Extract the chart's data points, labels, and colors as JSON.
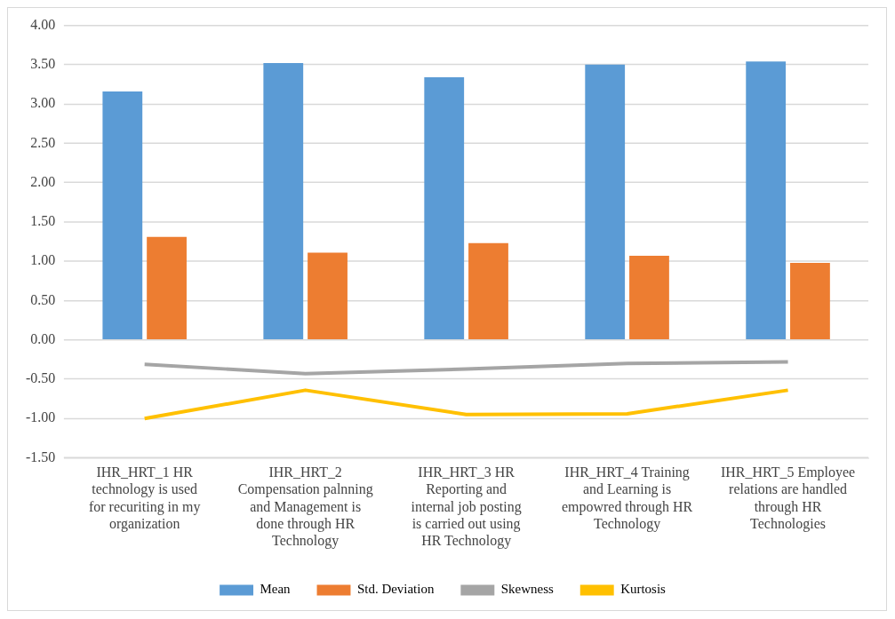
{
  "chart_data": {
    "type": "bar",
    "categories": [
      "IHR_HRT_1 HR technology is used for recuriting in my organization",
      "IHR_HRT_2 Compensation palnning and Management is done through HR Technology",
      "IHR_HRT_3 HR Reporting and internal job posting is carried out using HR Technology",
      "IHR_HRT_4 Training and Learning is empowred through HR Technology",
      "IHR_HRT_5 Employee relations are handled through HR Technologies"
    ],
    "series": [
      {
        "name": "Mean",
        "color": "#5b9bd5",
        "values": [
          3.16,
          3.52,
          3.34,
          3.5,
          3.54
        ]
      },
      {
        "name": "Std. Deviation",
        "color": "#ed7d31",
        "values": [
          1.31,
          1.11,
          1.23,
          1.07,
          0.98
        ]
      },
      {
        "name": "Skewness",
        "type": "line",
        "color": "#a5a5a5",
        "values": [
          -0.31,
          -0.43,
          -0.37,
          -0.3,
          -0.28
        ]
      },
      {
        "name": "Kurtosis",
        "type": "line",
        "color": "#ffc000",
        "values": [
          -1.0,
          -0.64,
          -0.95,
          -0.94,
          -0.64
        ]
      }
    ],
    "ylim": [
      -1.5,
      4
    ],
    "yticks": [
      {
        "value": -1.5,
        "label": "-1.50"
      },
      {
        "value": -1,
        "label": "-1.00"
      },
      {
        "value": -0.5,
        "label": "-0.50"
      },
      {
        "value": 0,
        "label": "0.00"
      },
      {
        "value": 0.5,
        "label": "0.50"
      },
      {
        "value": 1,
        "label": "1.00"
      },
      {
        "value": 1.5,
        "label": "1.50"
      },
      {
        "value": 2,
        "label": "2.00"
      },
      {
        "value": 2.5,
        "label": "2.50"
      },
      {
        "value": 3,
        "label": "3.00"
      },
      {
        "value": 3.5,
        "label": "3.50"
      },
      {
        "value": 4,
        "label": "4.00"
      }
    ],
    "grid": "y",
    "legend": "bottom",
    "marker": "none"
  }
}
